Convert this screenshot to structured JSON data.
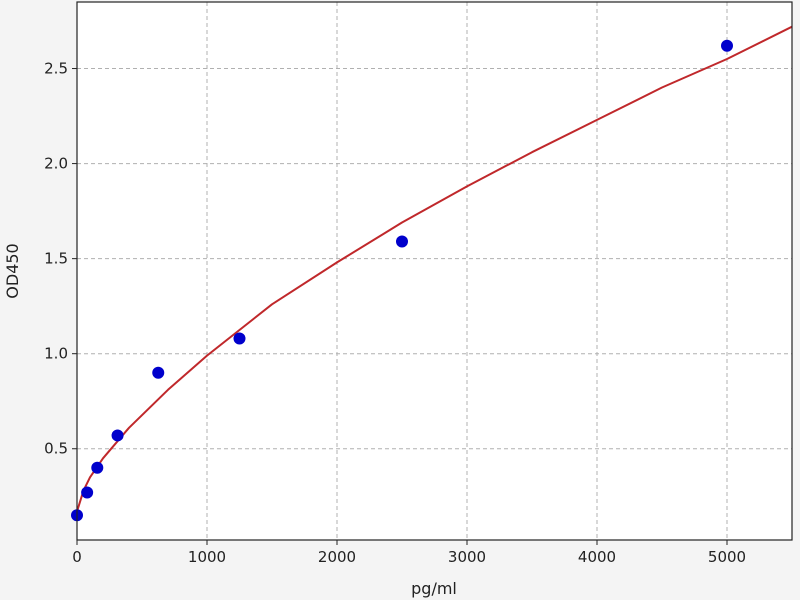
{
  "chart_data": {
    "type": "scatter",
    "title": "",
    "xlabel": "pg/ml",
    "ylabel": "OD450",
    "xlim": [
      0,
      5500
    ],
    "ylim": [
      0.02,
      2.85
    ],
    "xticks": [
      "0",
      "1000",
      "2000",
      "3000",
      "4000",
      "5000"
    ],
    "yticks": [
      "0.5",
      "1.0",
      "1.5",
      "2.0",
      "2.5"
    ],
    "grid": true,
    "points": {
      "x": [
        0,
        78,
        156,
        312,
        625,
        1250,
        2500,
        5000
      ],
      "y": [
        0.15,
        0.27,
        0.4,
        0.57,
        0.9,
        1.08,
        1.59,
        2.62
      ]
    },
    "fit_curve": {
      "x": [
        0,
        50,
        100,
        200,
        400,
        700,
        1000,
        1500,
        2000,
        2500,
        3000,
        3500,
        4000,
        4500,
        5000,
        5500
      ],
      "y": [
        0.17,
        0.28,
        0.35,
        0.45,
        0.61,
        0.81,
        0.99,
        1.26,
        1.48,
        1.69,
        1.88,
        2.06,
        2.23,
        2.4,
        2.55,
        2.72
      ]
    },
    "colors": {
      "points": "#0000cc",
      "curve": "#c0282b",
      "grid": "#b0b0b0"
    }
  }
}
